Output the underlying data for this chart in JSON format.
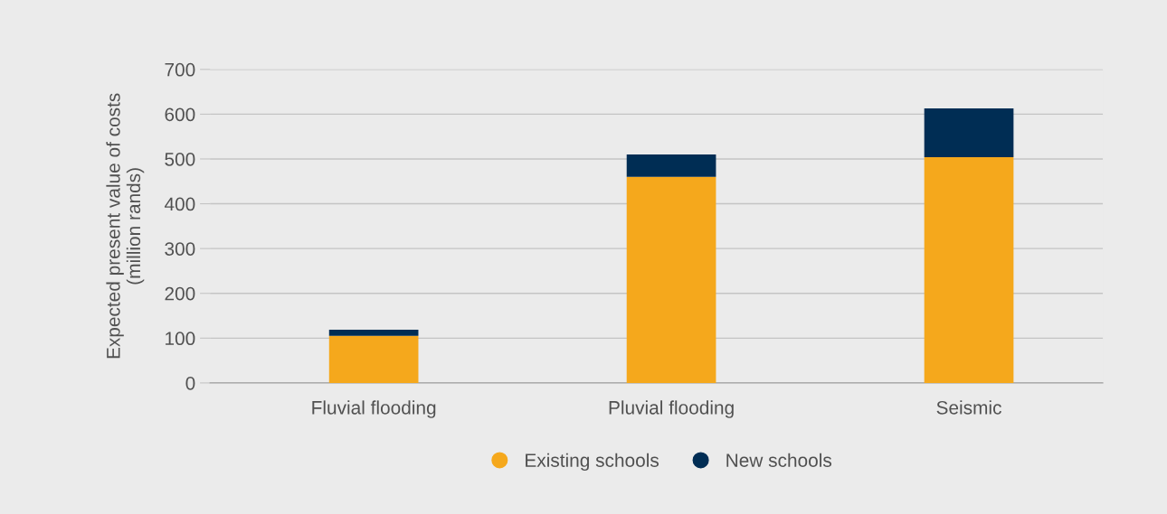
{
  "chart_data": {
    "type": "bar",
    "stacked": true,
    "ylabel": "Expected present value of costs\n(million rands)",
    "categories": [
      "Fluvial flooding",
      "Pluvial flooding",
      "Seismic"
    ],
    "series": [
      {
        "name": "Existing schools",
        "color": "#f5a81c",
        "values": [
          105,
          460,
          504
        ]
      },
      {
        "name": "New schools",
        "color": "#002d54",
        "values": [
          14,
          50,
          109
        ]
      }
    ],
    "ylim": [
      0,
      700
    ],
    "yticks": [
      0,
      100,
      200,
      300,
      400,
      500,
      600,
      700
    ],
    "grid": "y",
    "legend": "bottom"
  }
}
